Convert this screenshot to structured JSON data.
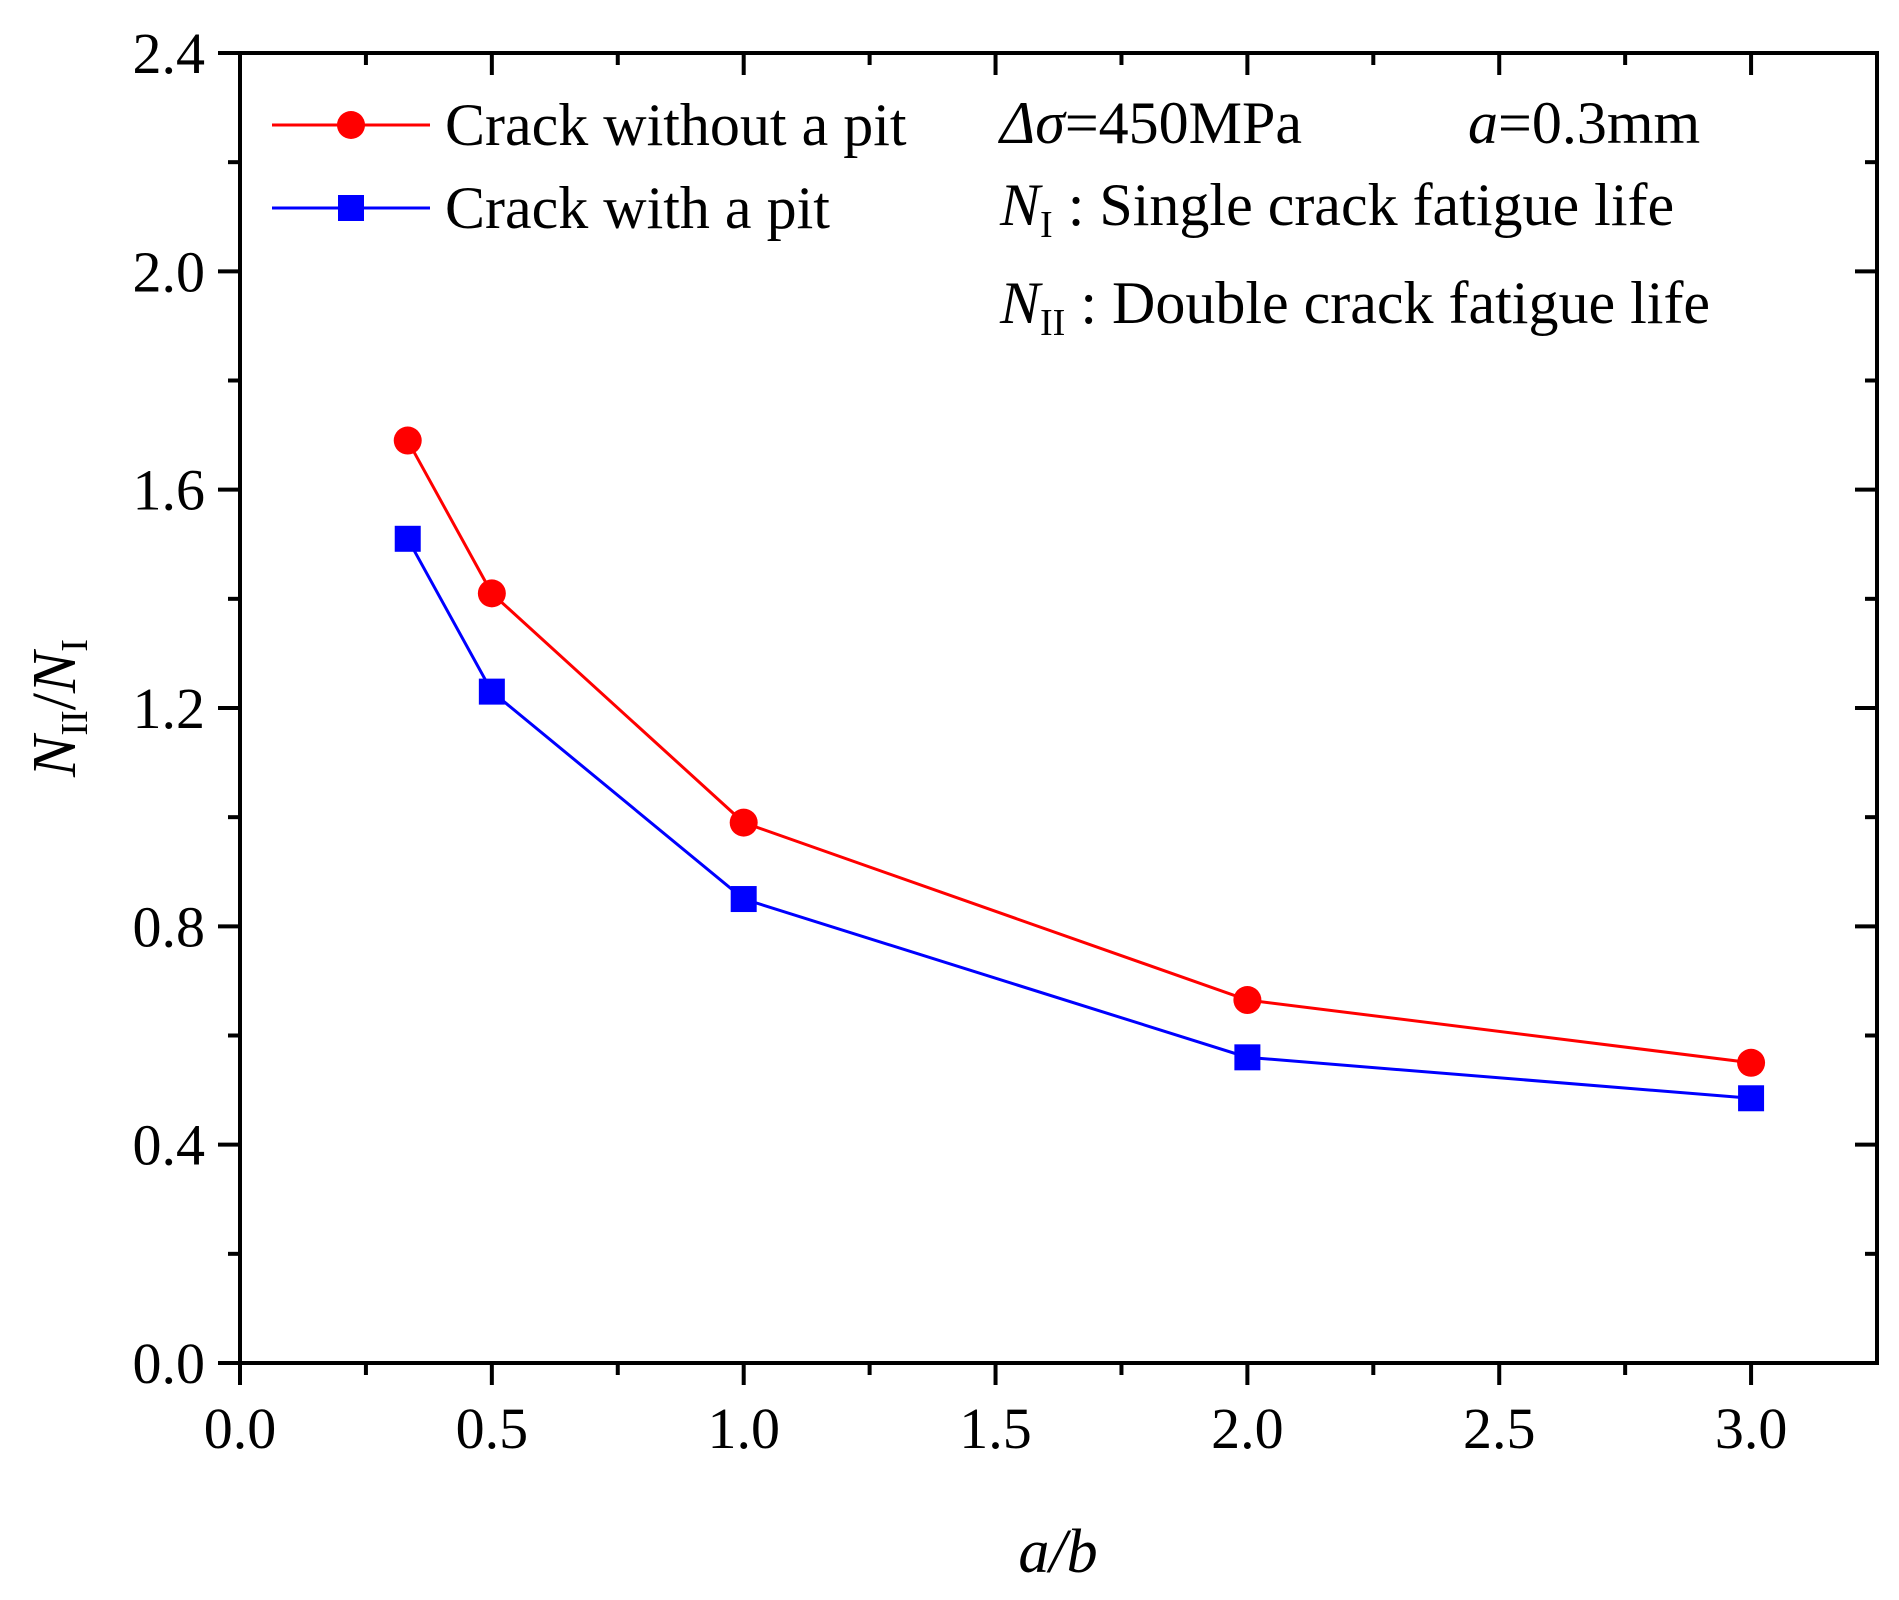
{
  "chart_data": {
    "type": "line",
    "title": "",
    "xlabel": "a/b",
    "ylabel": {
      "main": "N",
      "sub_num": "II",
      "slash": "/",
      "main2": "N",
      "sub_den": "I"
    },
    "xlim": [
      0,
      3.25
    ],
    "ylim": [
      0,
      2.4
    ],
    "xticks": [
      0.0,
      0.5,
      1.0,
      1.5,
      2.0,
      2.5,
      3.0
    ],
    "xtick_labels": [
      "0.0",
      "0.5",
      "1.0",
      "1.5",
      "2.0",
      "2.5",
      "3.0"
    ],
    "yticks": [
      0.0,
      0.4,
      0.8,
      1.2,
      1.6,
      2.0,
      2.4
    ],
    "ytick_labels": [
      "0.0",
      "0.4",
      "0.8",
      "1.2",
      "1.6",
      "2.0",
      "2.4"
    ],
    "x": [
      0.333,
      0.5,
      1.0,
      2.0,
      3.0
    ],
    "series": [
      {
        "name": "Crack without a pit",
        "marker": "circle",
        "color": "#ff0000",
        "values": [
          1.69,
          1.41,
          0.99,
          0.665,
          0.55
        ]
      },
      {
        "name": "Crack with a pit",
        "marker": "square",
        "color": "#0000ff",
        "values": [
          1.51,
          1.23,
          0.85,
          0.56,
          0.485
        ]
      }
    ],
    "legend_position": "top-left",
    "annotations": {
      "line1_delta": "Δσ",
      "line1_rest": "=450MPa",
      "line1_a": "a",
      "line1_a_rest": "=0.3mm",
      "line2_N": "N",
      "line2_sub": "I",
      "line2_text": " : Single crack fatigue life",
      "line3_N": "N",
      "line3_sub": "II",
      "line3_text": " : Double crack fatigue life"
    }
  }
}
